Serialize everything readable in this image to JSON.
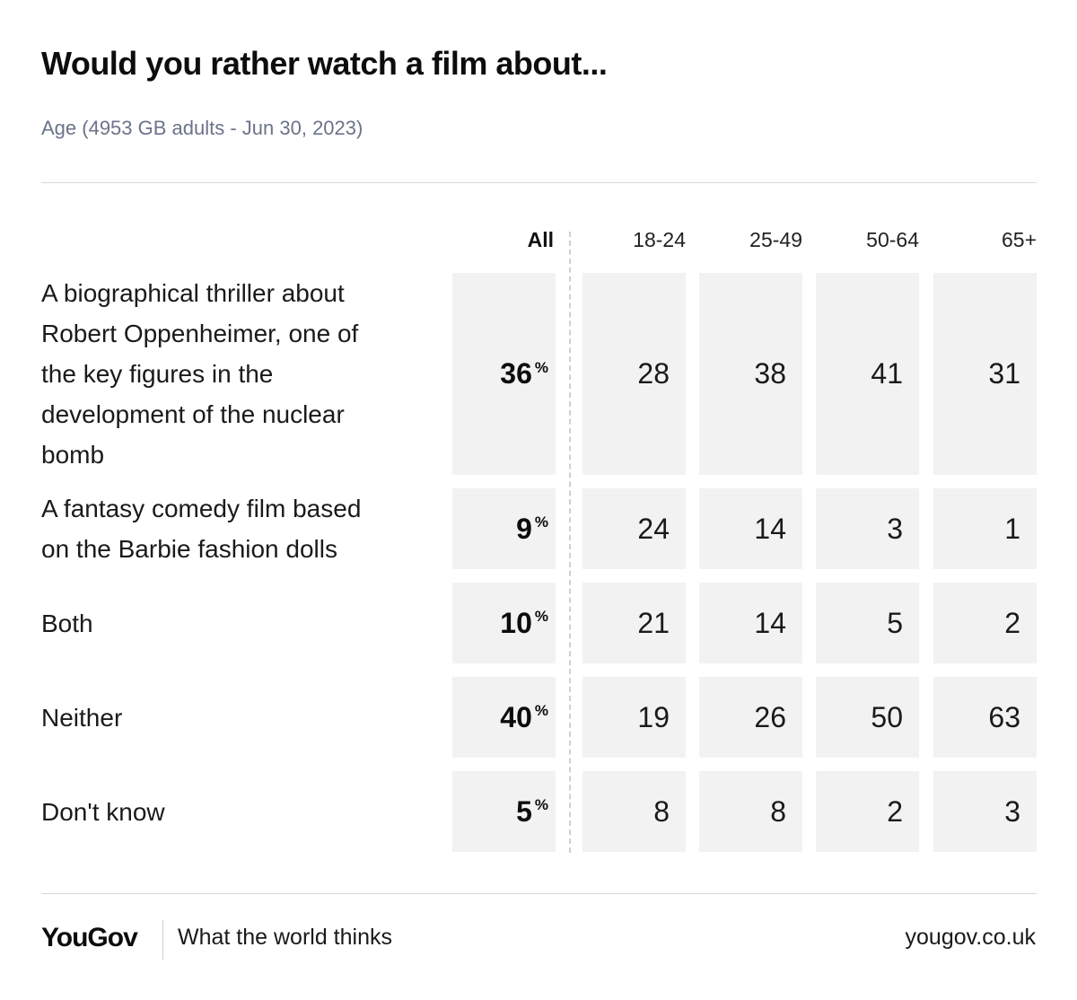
{
  "chart_data": {
    "type": "table",
    "title": "Would you rather watch a film about...",
    "subtitle": "Age (4953 GB adults - Jun 30, 2023)",
    "columns": [
      "All",
      "18-24",
      "25-49",
      "50-64",
      "65+"
    ],
    "percent_sign": "%",
    "rows": [
      {
        "label": "A biographical thriller about Robert Oppenheimer, one of the key figures in the development of the nuclear bomb",
        "label_lines": [
          "A biographical thriller about",
          "Robert Oppenheimer, one of",
          "the key figures in the",
          "development of the nuclear",
          "bomb"
        ],
        "values": [
          36,
          28,
          38,
          41,
          31
        ]
      },
      {
        "label": "A fantasy comedy film based on the Barbie fashion dolls",
        "label_lines": [
          "A fantasy comedy film based",
          "on the Barbie fashion dolls"
        ],
        "values": [
          9,
          24,
          14,
          3,
          1
        ]
      },
      {
        "label": "Both",
        "label_lines": [
          "Both"
        ],
        "values": [
          10,
          21,
          14,
          5,
          2
        ]
      },
      {
        "label": "Neither",
        "label_lines": [
          "Neither"
        ],
        "values": [
          40,
          19,
          26,
          50,
          63
        ]
      },
      {
        "label": "Don't know",
        "label_lines": [
          "Don't know"
        ],
        "values": [
          5,
          8,
          8,
          2,
          3
        ]
      }
    ]
  },
  "footer": {
    "logo": "YouGov",
    "tagline": "What the world thinks",
    "site": "yougov.co.uk"
  }
}
